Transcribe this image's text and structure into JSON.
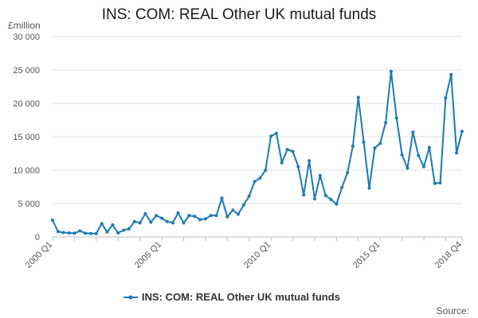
{
  "chart_data": {
    "type": "line",
    "title": "INS: COM: REAL Other UK mutual funds",
    "unit_label": "£million",
    "ylim": [
      0,
      30000
    ],
    "y_ticks": [
      0,
      5000,
      10000,
      15000,
      20000,
      25000,
      30000
    ],
    "y_tick_labels": [
      "0",
      "5 000",
      "10 000",
      "15 000",
      "20 000",
      "25 000",
      "30 000"
    ],
    "x_tick_labels": [
      "2000 Q1",
      "2005 Q1",
      "2010 Q1",
      "2015 Q1",
      "2018 Q4"
    ],
    "x_tick_indices": [
      0,
      20,
      40,
      60,
      75
    ],
    "minor_tick_step": 4,
    "grid": "horizontal",
    "legend_position": "bottom",
    "source_label": "Source:",
    "color": "#1a7ab5",
    "series": [
      {
        "name": "INS: COM: REAL Other UK mutual funds",
        "x_start": "2000 Q1",
        "x_end": "2018 Q4",
        "values": [
          2500,
          800,
          650,
          600,
          550,
          900,
          550,
          500,
          500,
          2000,
          750,
          1800,
          600,
          1000,
          1200,
          2300,
          2100,
          3500,
          2200,
          3200,
          2800,
          2300,
          2100,
          3600,
          2100,
          3200,
          3100,
          2600,
          2700,
          3200,
          3200,
          5800,
          3000,
          4000,
          3400,
          4800,
          6100,
          8300,
          8800,
          10000,
          15100,
          15500,
          11100,
          13100,
          12800,
          10500,
          6300,
          11400,
          5700,
          9200,
          6200,
          5600,
          4900,
          7400,
          9600,
          13600,
          20900,
          14200,
          7300,
          13300,
          14000,
          17100,
          24800,
          17800,
          12300,
          10300,
          15700,
          12200,
          10500,
          13400,
          8000,
          8100,
          20800,
          24300,
          12600,
          15800
        ]
      }
    ]
  }
}
